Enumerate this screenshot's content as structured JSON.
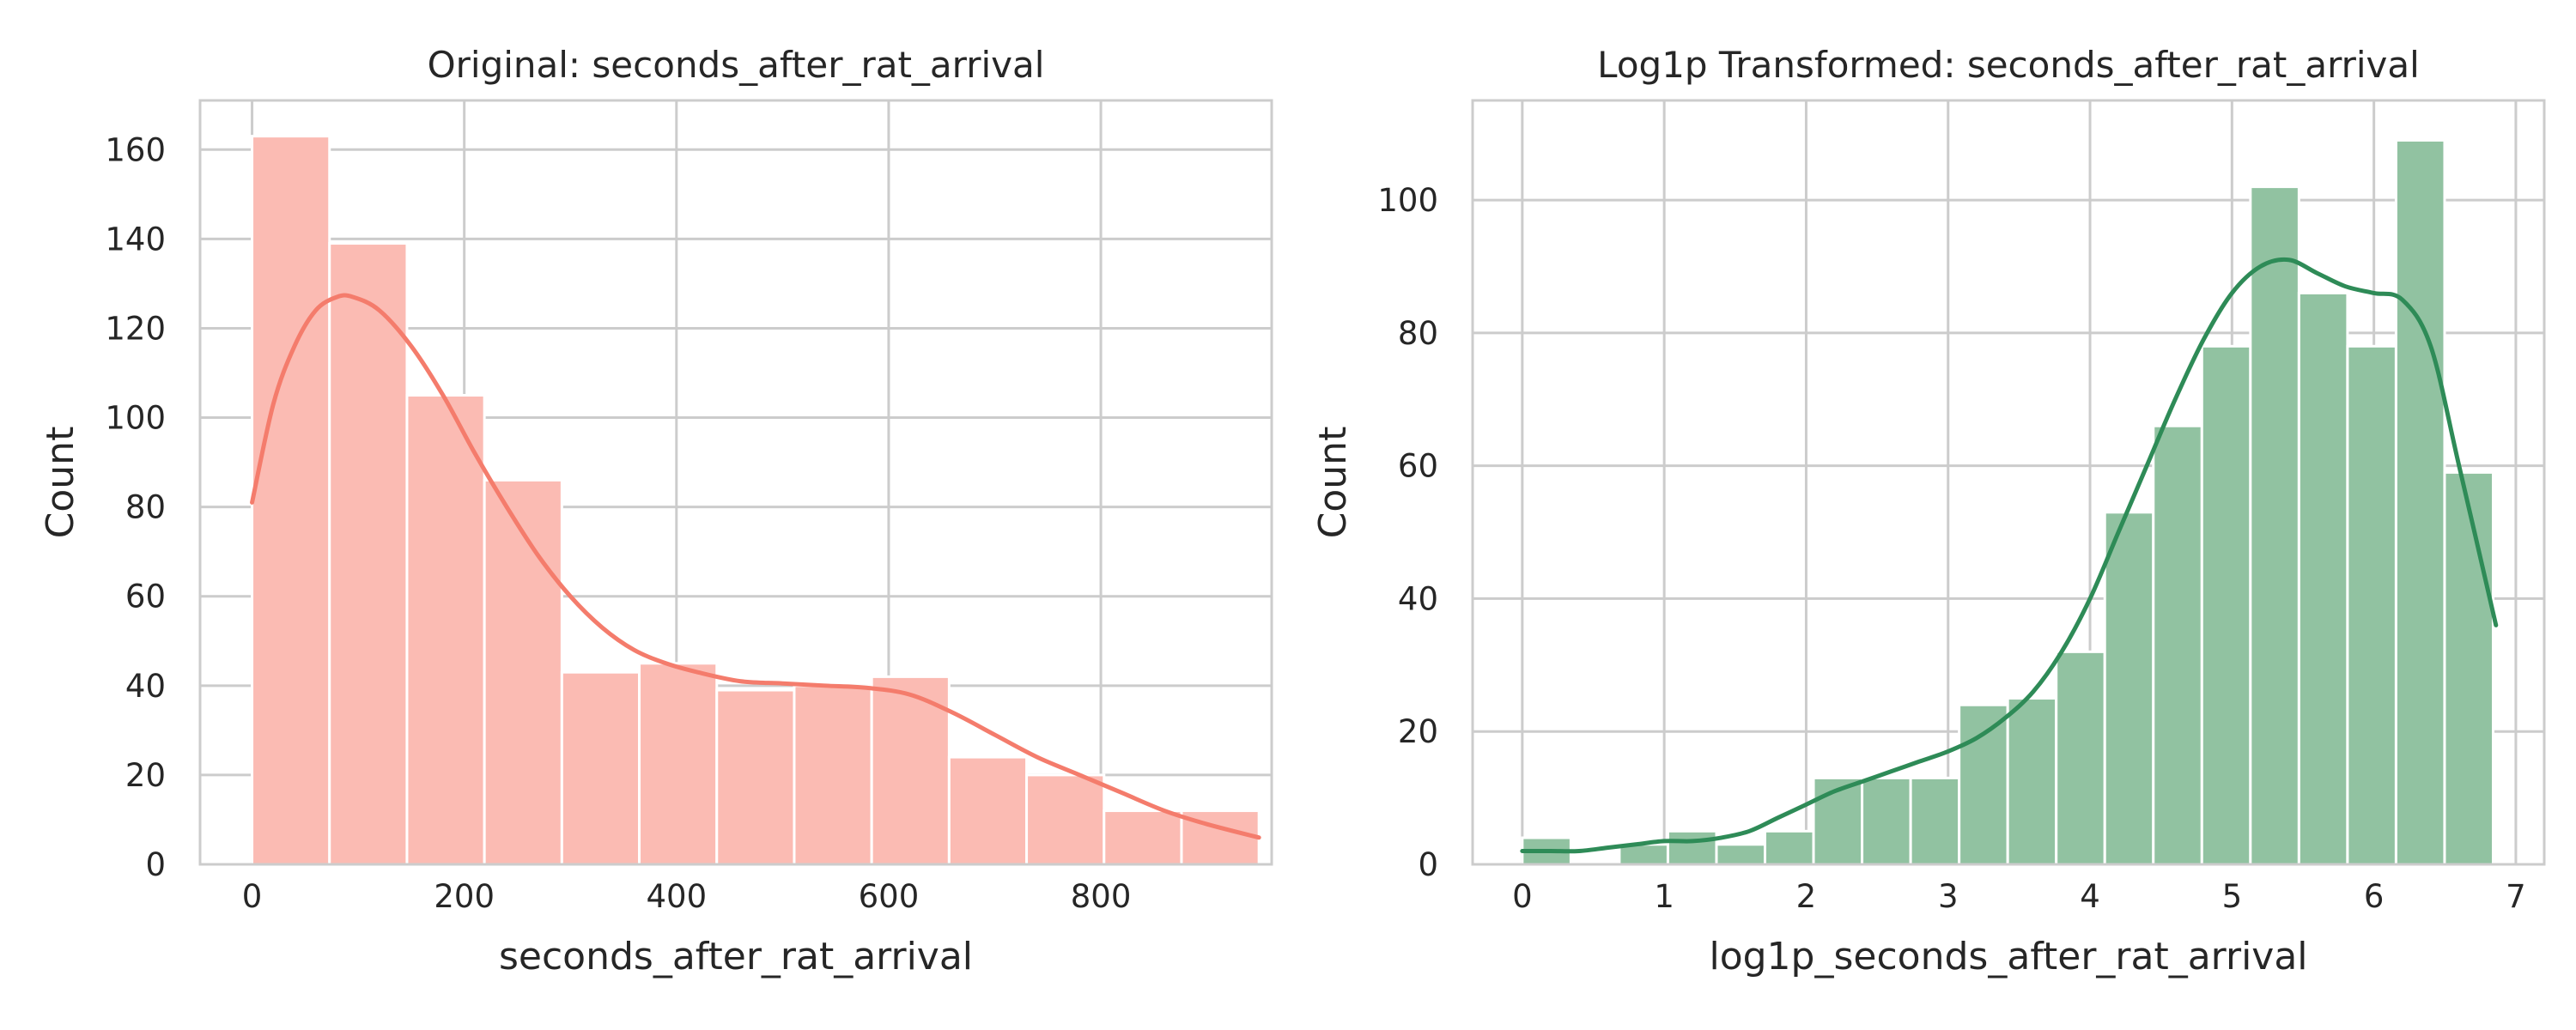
{
  "chart_data": [
    {
      "type": "bar",
      "title": "Original: seconds_after_rat_arrival",
      "xlabel": "seconds_after_rat_arrival",
      "ylabel": "Count",
      "xlim": [
        -49,
        961
      ],
      "ylim": [
        0,
        171
      ],
      "xticks": [
        0,
        200,
        400,
        600,
        800
      ],
      "yticks": [
        0,
        20,
        40,
        60,
        80,
        100,
        120,
        140,
        160
      ],
      "grid": true,
      "bar_color": "#fbbbb3",
      "kde_color": "#f47c6c",
      "bins": [
        {
          "x0": 0,
          "x1": 73,
          "count": 163
        },
        {
          "x0": 73,
          "x1": 146,
          "count": 139
        },
        {
          "x0": 146,
          "x1": 219,
          "count": 105
        },
        {
          "x0": 219,
          "x1": 292,
          "count": 86
        },
        {
          "x0": 292,
          "x1": 365,
          "count": 43
        },
        {
          "x0": 365,
          "x1": 438,
          "count": 45
        },
        {
          "x0": 438,
          "x1": 511,
          "count": 39
        },
        {
          "x0": 511,
          "x1": 584,
          "count": 40
        },
        {
          "x0": 584,
          "x1": 657,
          "count": 42
        },
        {
          "x0": 657,
          "x1": 730,
          "count": 24
        },
        {
          "x0": 730,
          "x1": 803,
          "count": 20
        },
        {
          "x0": 803,
          "x1": 876,
          "count": 12
        },
        {
          "x0": 876,
          "x1": 949,
          "count": 12
        }
      ],
      "kde": {
        "x": [
          0,
          20,
          40,
          60,
          80,
          95,
          120,
          150,
          180,
          210,
          240,
          270,
          300,
          330,
          360,
          390,
          420,
          460,
          500,
          540,
          580,
          620,
          660,
          700,
          740,
          780,
          820,
          860,
          900,
          949
        ],
        "y": [
          81,
          103,
          116,
          124,
          127,
          127,
          124,
          116,
          105,
          92,
          80,
          69,
          60,
          53,
          48,
          45,
          43,
          41,
          40.5,
          40,
          39.5,
          38,
          34,
          29,
          24,
          20,
          16,
          12,
          9,
          6
        ]
      }
    },
    {
      "type": "bar",
      "title": "Log1p Transformed: seconds_after_rat_arrival",
      "xlabel": "log1p_seconds_after_rat_arrival",
      "ylabel": "Count",
      "xlim": [
        -0.35,
        7.2
      ],
      "ylim": [
        0,
        115
      ],
      "xticks": [
        0,
        1,
        2,
        3,
        4,
        5,
        6,
        7
      ],
      "yticks": [
        0,
        20,
        40,
        60,
        80,
        100
      ],
      "grid": true,
      "bar_color": "#91c2a1",
      "kde_color": "#2e8b57",
      "bins": [
        {
          "x0": 0.0,
          "x1": 0.342,
          "count": 4
        },
        {
          "x0": 0.342,
          "x1": 0.684,
          "count": 0
        },
        {
          "x0": 0.684,
          "x1": 1.026,
          "count": 3
        },
        {
          "x0": 1.026,
          "x1": 1.368,
          "count": 5
        },
        {
          "x0": 1.368,
          "x1": 1.71,
          "count": 3
        },
        {
          "x0": 1.71,
          "x1": 2.052,
          "count": 5
        },
        {
          "x0": 2.052,
          "x1": 2.394,
          "count": 13
        },
        {
          "x0": 2.394,
          "x1": 2.736,
          "count": 13
        },
        {
          "x0": 2.736,
          "x1": 3.078,
          "count": 13
        },
        {
          "x0": 3.078,
          "x1": 3.42,
          "count": 24
        },
        {
          "x0": 3.42,
          "x1": 3.762,
          "count": 25
        },
        {
          "x0": 3.762,
          "x1": 4.104,
          "count": 32
        },
        {
          "x0": 4.104,
          "x1": 4.446,
          "count": 53
        },
        {
          "x0": 4.446,
          "x1": 4.788,
          "count": 66
        },
        {
          "x0": 4.788,
          "x1": 5.13,
          "count": 78
        },
        {
          "x0": 5.13,
          "x1": 5.472,
          "count": 102
        },
        {
          "x0": 5.472,
          "x1": 5.814,
          "count": 86
        },
        {
          "x0": 5.814,
          "x1": 6.156,
          "count": 78
        },
        {
          "x0": 6.156,
          "x1": 6.498,
          "count": 109
        },
        {
          "x0": 6.498,
          "x1": 6.84,
          "count": 59
        }
      ],
      "kde": {
        "x": [
          0.0,
          0.2,
          0.4,
          0.6,
          0.8,
          1.0,
          1.2,
          1.4,
          1.6,
          1.8,
          2.0,
          2.2,
          2.4,
          2.6,
          2.8,
          3.0,
          3.2,
          3.4,
          3.6,
          3.8,
          4.0,
          4.2,
          4.4,
          4.6,
          4.8,
          5.0,
          5.2,
          5.4,
          5.6,
          5.8,
          6.0,
          6.2,
          6.4,
          6.6,
          6.86
        ],
        "y": [
          2,
          2,
          2,
          2.5,
          3,
          3.5,
          3.5,
          4,
          5,
          7,
          9,
          11,
          12.5,
          14,
          15.5,
          17,
          19,
          22,
          26,
          32,
          40,
          50,
          60,
          70,
          79,
          86,
          90,
          91,
          89,
          87,
          86,
          85,
          78,
          60,
          36
        ]
      }
    }
  ]
}
